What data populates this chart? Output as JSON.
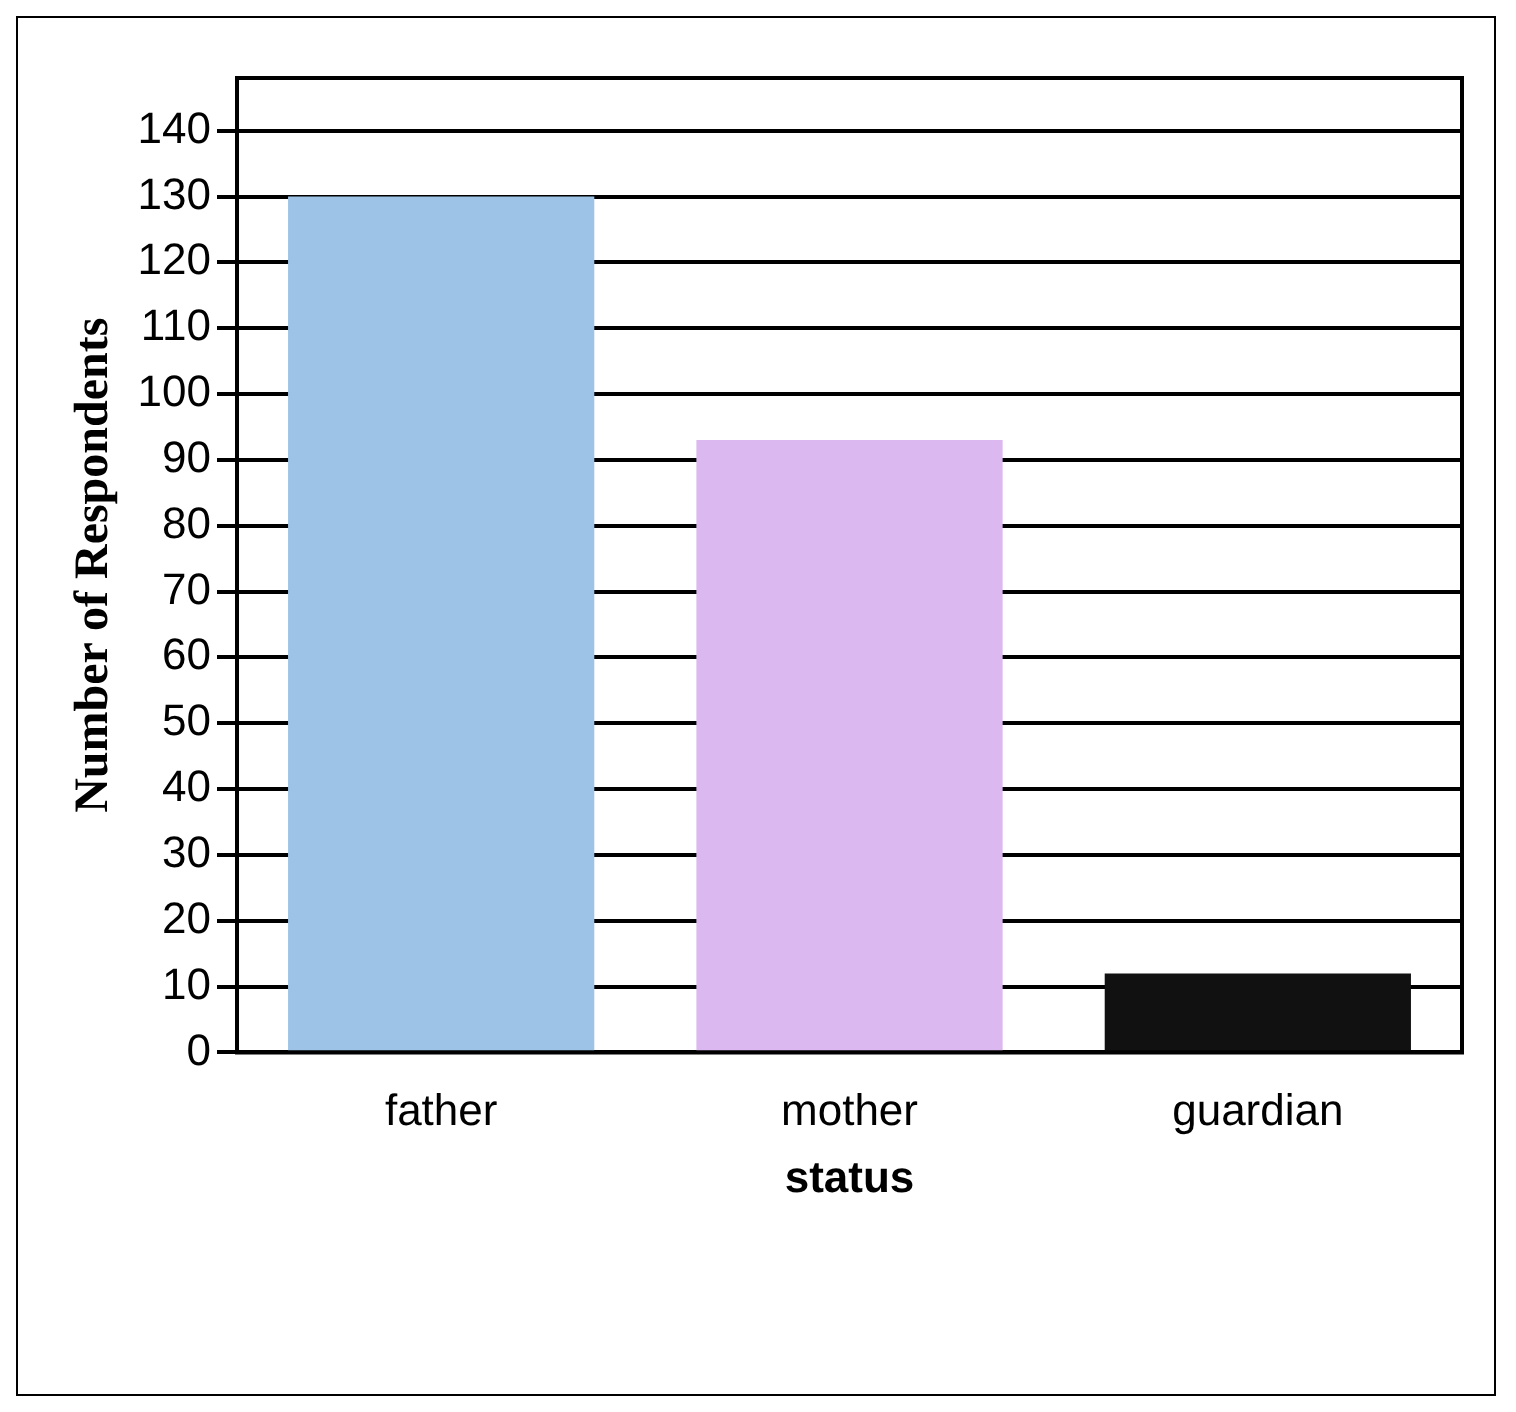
{
  "chart_data": {
    "type": "bar",
    "xlabel": "status",
    "ylabel": "Number of Respondents",
    "categories": [
      "father",
      "mother",
      "guardian"
    ],
    "values": [
      130,
      93,
      12
    ],
    "colors": [
      "#9dc3e6",
      "#dcb8f0",
      "#111111"
    ],
    "ylim": [
      0,
      148
    ],
    "yticks": [
      0,
      10,
      20,
      30,
      40,
      50,
      60,
      70,
      80,
      90,
      100,
      110,
      120,
      130,
      140
    ],
    "grid": "y"
  }
}
